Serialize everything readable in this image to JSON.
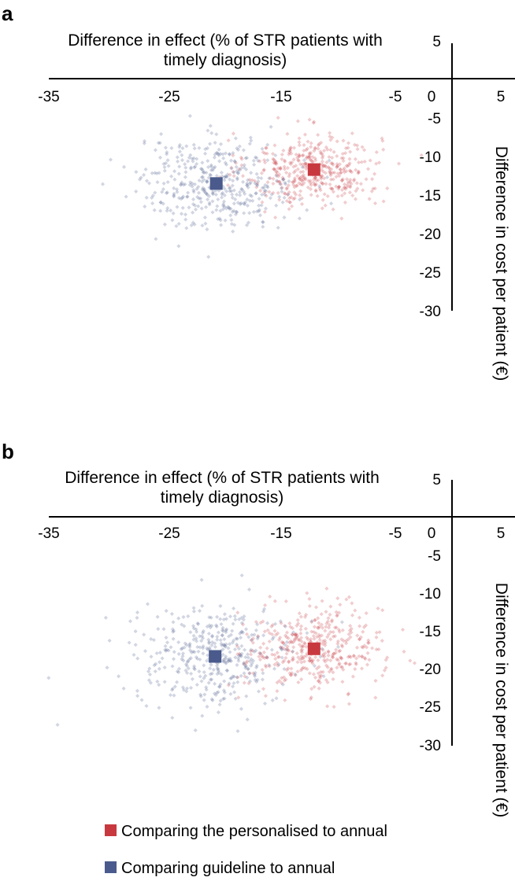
{
  "chart_data": [
    {
      "type": "scatter",
      "panel_label": "a",
      "xlabel_line1": "Difference in effect (% of STR patients with",
      "xlabel_line2": "timely diagnosis)",
      "ylabel": "Difference in cost per patient (€)",
      "xlim": [
        -35,
        5
      ],
      "ylim": [
        -30,
        5
      ],
      "x_ticks": [
        "-35",
        "-25",
        "-15",
        "-5",
        "0",
        "5"
      ],
      "y_ticks": [
        "5",
        "-5",
        "-10",
        "-15",
        "-20",
        "-25",
        "-30"
      ],
      "series": [
        {
          "name": "Comparing the personalised to annual",
          "color": "#c8393f",
          "mean": {
            "x": -12,
            "y": -11.8
          },
          "spread": {
            "x_sd": 2.9,
            "y_sd": 2.4
          },
          "n_points": 420
        },
        {
          "name": "Comparing guideline to annual",
          "color": "#4a5a8c",
          "mean": {
            "x": -20.5,
            "y": -13.6
          },
          "spread": {
            "x_sd": 3.4,
            "y_sd": 2.9
          },
          "n_points": 420
        }
      ]
    },
    {
      "type": "scatter",
      "panel_label": "b",
      "xlabel_line1": "Difference in effect (% of STR patients with",
      "xlabel_line2": "timely diagnosis)",
      "ylabel": "Difference in cost per patient (€)",
      "xlim": [
        -35,
        5
      ],
      "ylim": [
        -30,
        5
      ],
      "x_ticks": [
        "-35",
        "-25",
        "-15",
        "-5",
        "0",
        "5"
      ],
      "y_ticks": [
        "5",
        "-5",
        "-10",
        "-15",
        "-20",
        "-25",
        "-30"
      ],
      "series": [
        {
          "name": "Comparing the personalised to annual",
          "color": "#c8393f",
          "mean": {
            "x": -12,
            "y": -17.3
          },
          "spread": {
            "x_sd": 3.0,
            "y_sd": 2.8
          },
          "n_points": 420
        },
        {
          "name": "Comparing guideline to annual",
          "color": "#4a5a8c",
          "mean": {
            "x": -20.6,
            "y": -18.3
          },
          "spread": {
            "x_sd": 3.5,
            "y_sd": 3.2
          },
          "n_points": 420
        }
      ]
    }
  ],
  "legend": {
    "items": [
      {
        "label": "Comparing the personalised to annual",
        "color": "#c8393f"
      },
      {
        "label": "Comparing guideline to annual",
        "color": "#4a5a8c"
      }
    ]
  }
}
